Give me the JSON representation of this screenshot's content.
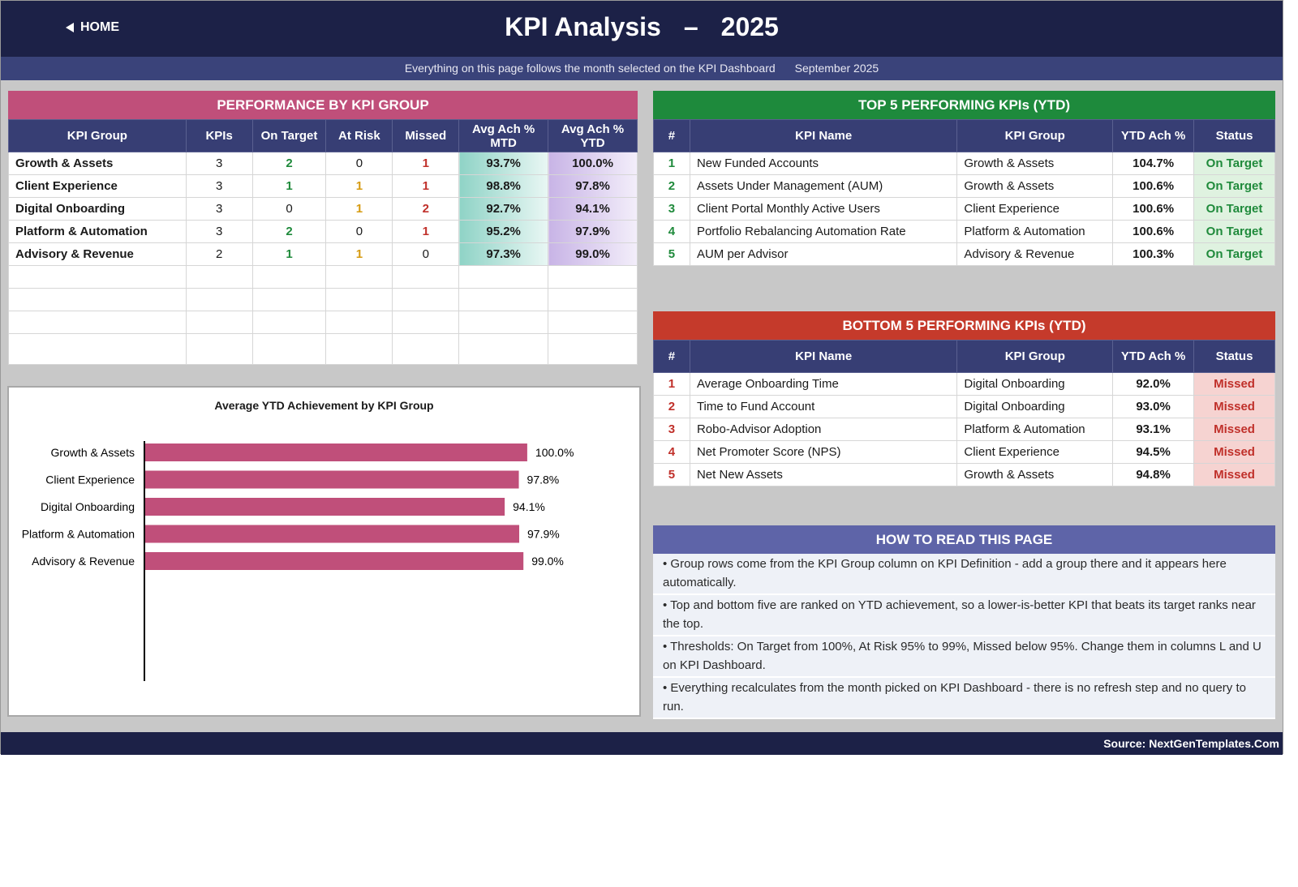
{
  "header": {
    "home_label": "HOME",
    "title_left": "KPI Analysis",
    "title_dash": "–",
    "title_year": "2025",
    "subtitle": "Everything on this page follows the month selected on the KPI Dashboard",
    "month": "September 2025"
  },
  "colors": {
    "navy": "#1c2147",
    "pink_header": "#c04f7a",
    "green_header": "#1e8a3c",
    "red_header": "#c53a2b",
    "purple_header": "#5e64a8",
    "bar": "#c04f7a"
  },
  "perf": {
    "title": "PERFORMANCE BY KPI GROUP",
    "headers": {
      "group": "KPI Group",
      "kpis": "KPIs",
      "on_target": "On Target",
      "at_risk": "At Risk",
      "missed": "Missed",
      "mtd_1": "Avg Ach %",
      "mtd_2": "MTD",
      "ytd_1": "Avg Ach %",
      "ytd_2": "YTD"
    },
    "rows": [
      {
        "group": "Growth & Assets",
        "kpis": "3",
        "on_target": "2",
        "at_risk": "0",
        "missed": "1",
        "mtd": "93.7%",
        "ytd": "100.0%"
      },
      {
        "group": "Client Experience",
        "kpis": "3",
        "on_target": "1",
        "at_risk": "1",
        "missed": "1",
        "mtd": "98.8%",
        "ytd": "97.8%"
      },
      {
        "group": "Digital Onboarding",
        "kpis": "3",
        "on_target": "0",
        "at_risk": "1",
        "missed": "2",
        "mtd": "92.7%",
        "ytd": "94.1%"
      },
      {
        "group": "Platform & Automation",
        "kpis": "3",
        "on_target": "2",
        "at_risk": "0",
        "missed": "1",
        "mtd": "95.2%",
        "ytd": "97.9%"
      },
      {
        "group": "Advisory & Revenue",
        "kpis": "2",
        "on_target": "1",
        "at_risk": "1",
        "missed": "0",
        "mtd": "97.3%",
        "ytd": "99.0%"
      }
    ]
  },
  "top5": {
    "title": "TOP 5 PERFORMING KPIs  (YTD)",
    "headers": {
      "num": "#",
      "name": "KPI Name",
      "group": "KPI Group",
      "ytd": "YTD Ach %",
      "status": "Status"
    },
    "rows": [
      {
        "num": "1",
        "name": "New Funded Accounts",
        "group": "Growth & Assets",
        "ytd": "104.7%",
        "status": "On Target"
      },
      {
        "num": "2",
        "name": "Assets Under Management (AUM)",
        "group": "Growth & Assets",
        "ytd": "100.6%",
        "status": "On Target"
      },
      {
        "num": "3",
        "name": "Client Portal Monthly Active Users",
        "group": "Client Experience",
        "ytd": "100.6%",
        "status": "On Target"
      },
      {
        "num": "4",
        "name": "Portfolio Rebalancing Automation Rate",
        "group": "Platform & Automation",
        "ytd": "100.6%",
        "status": "On Target"
      },
      {
        "num": "5",
        "name": "AUM per Advisor",
        "group": "Advisory & Revenue",
        "ytd": "100.3%",
        "status": "On Target"
      }
    ]
  },
  "bottom5": {
    "title": "BOTTOM 5 PERFORMING KPIs  (YTD)",
    "headers": {
      "num": "#",
      "name": "KPI Name",
      "group": "KPI Group",
      "ytd": "YTD Ach %",
      "status": "Status"
    },
    "rows": [
      {
        "num": "1",
        "name": "Average Onboarding Time",
        "group": "Digital Onboarding",
        "ytd": "92.0%",
        "status": "Missed"
      },
      {
        "num": "2",
        "name": "Time to Fund Account",
        "group": "Digital Onboarding",
        "ytd": "93.0%",
        "status": "Missed"
      },
      {
        "num": "3",
        "name": "Robo-Advisor Adoption",
        "group": "Platform & Automation",
        "ytd": "93.1%",
        "status": "Missed"
      },
      {
        "num": "4",
        "name": "Net Promoter Score (NPS)",
        "group": "Client Experience",
        "ytd": "94.5%",
        "status": "Missed"
      },
      {
        "num": "5",
        "name": "Net New Assets",
        "group": "Growth & Assets",
        "ytd": "94.8%",
        "status": "Missed"
      }
    ]
  },
  "howto": {
    "title": "HOW TO READ THIS PAGE",
    "items": [
      "•  Group rows come from the KPI Group column on KPI Definition - add a group there and it appears here automatically.",
      "•  Top and bottom five are ranked on YTD achievement, so a lower-is-better KPI that beats its target ranks near the top.",
      "•  Thresholds: On Target from 100%, At Risk 95% to 99%, Missed below 95%. Change them in columns L and U on KPI Dashboard.",
      "•  Everything recalculates from the month picked on KPI Dashboard - there is no refresh step and no query to run."
    ]
  },
  "chart_data": {
    "type": "bar",
    "orientation": "horizontal",
    "title": "Average YTD Achievement by KPI Group",
    "categories": [
      "Growth & Assets",
      "Client Experience",
      "Digital Onboarding",
      "Platform & Automation",
      "Advisory & Revenue"
    ],
    "values": [
      100.0,
      97.8,
      94.1,
      97.9,
      99.0
    ],
    "data_labels": [
      "100.0%",
      "97.8%",
      "94.1%",
      "97.9%",
      "99.0%"
    ],
    "xlim": [
      0,
      110
    ],
    "grid": false,
    "legend": "none",
    "bar_color": "#c04f7a"
  },
  "footer": {
    "source": "Source: NextGenTemplates.Com"
  }
}
